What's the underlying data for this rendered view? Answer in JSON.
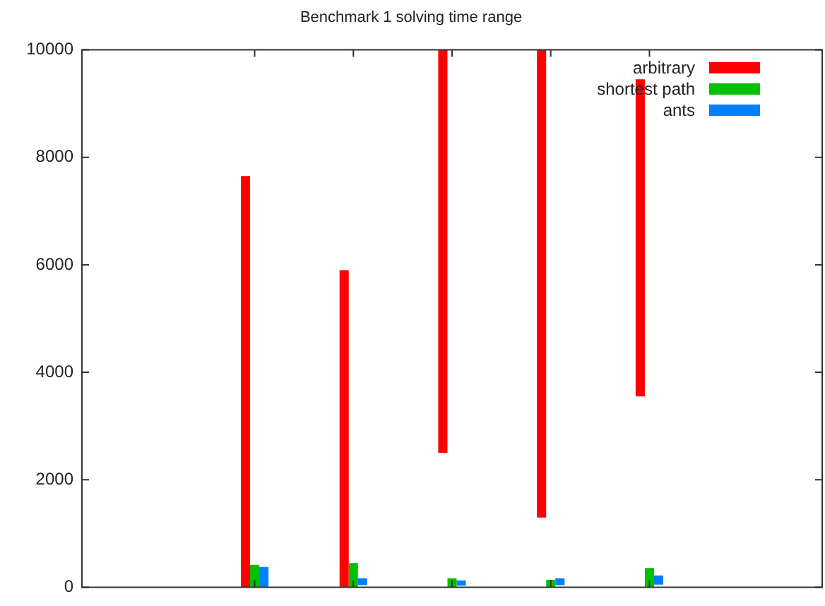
{
  "chart_data": {
    "type": "bar",
    "title": "Benchmark 1 solving time range",
    "categories": [
      null,
      null,
      null,
      null,
      null
    ],
    "series": [
      {
        "name": "arbitrary",
        "color": "#ff0000",
        "base": [
          0,
          0,
          2500,
          1300,
          3550
        ],
        "values": [
          7650,
          5900,
          7500,
          8700,
          5900
        ]
      },
      {
        "name": "shortest path",
        "color": "#00c000",
        "base": [
          0,
          0,
          0,
          0,
          0
        ],
        "values": [
          420,
          450,
          170,
          140,
          360
        ]
      },
      {
        "name": "ants",
        "color": "#0080ff",
        "base": [
          0,
          40,
          30,
          40,
          50
        ],
        "values": [
          380,
          130,
          100,
          130,
          170
        ]
      }
    ],
    "ylim": [
      0,
      10000
    ],
    "yticks": [
      0,
      2000,
      4000,
      6000,
      8000,
      10000
    ],
    "grid": false,
    "legend": "top right",
    "tick_labels": "y"
  }
}
